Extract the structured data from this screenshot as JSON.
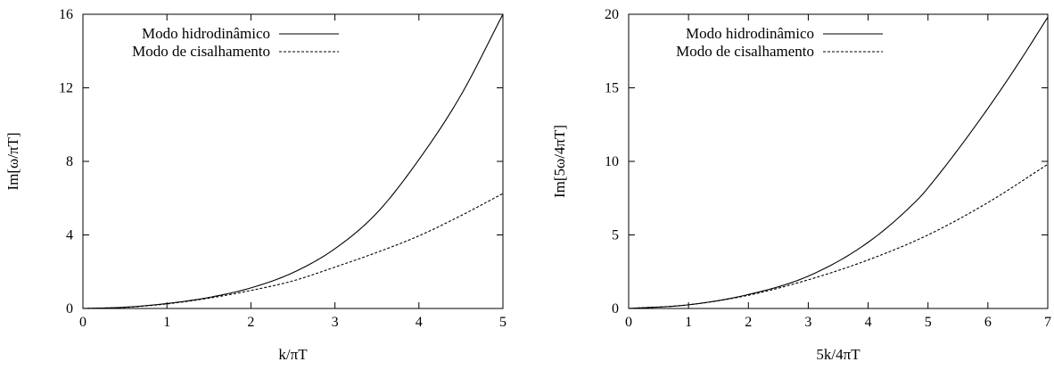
{
  "chart_data": [
    {
      "type": "line",
      "title": "",
      "xlabel": "k/πT",
      "ylabel": "Im[ω/πT]",
      "xlim": [
        0,
        5
      ],
      "ylim": [
        0,
        16
      ],
      "x_ticks": [
        "0",
        "1",
        "2",
        "3",
        "4",
        "5"
      ],
      "y_ticks": [
        "0",
        "4",
        "8",
        "12",
        "16"
      ],
      "grid": false,
      "legend_position": "top-left",
      "series": [
        {
          "name": "Modo hidrodinâmico",
          "style": "solid",
          "x": [
            0,
            0.5,
            1,
            1.5,
            2,
            2.5,
            3,
            3.5,
            4,
            4.5,
            5
          ],
          "y": [
            0,
            0.07,
            0.27,
            0.6,
            1.12,
            1.95,
            3.25,
            5.2,
            8.1,
            11.6,
            16.0
          ]
        },
        {
          "name": "Modo de cisalhamento",
          "style": "dashed",
          "x": [
            0,
            0.5,
            1,
            1.5,
            2,
            2.5,
            3,
            3.5,
            4,
            4.5,
            5
          ],
          "y": [
            0,
            0.06,
            0.25,
            0.56,
            0.98,
            1.5,
            2.25,
            3.05,
            3.95,
            5.05,
            6.25
          ]
        }
      ]
    },
    {
      "type": "line",
      "title": "",
      "xlabel": "5k/4πT",
      "ylabel": "Im[5ω/4πT]",
      "xlim": [
        0,
        7
      ],
      "ylim": [
        0,
        20
      ],
      "x_ticks": [
        "0",
        "1",
        "2",
        "3",
        "4",
        "5",
        "6",
        "7"
      ],
      "y_ticks": [
        "0",
        "5",
        "10",
        "15",
        "20"
      ],
      "grid": false,
      "legend_position": "top-left",
      "series": [
        {
          "name": "Modo hidrodinâmico",
          "style": "solid",
          "x": [
            0,
            1,
            2,
            3,
            4,
            4.85,
            5,
            5.5,
            6,
            6.5,
            7
          ],
          "y": [
            0,
            0.25,
            0.95,
            2.2,
            4.5,
            7.5,
            8.2,
            10.8,
            13.6,
            16.6,
            19.8
          ]
        },
        {
          "name": "Modo de cisalhamento",
          "style": "dashed",
          "x": [
            0,
            1,
            2,
            3,
            4,
            5,
            6,
            7
          ],
          "y": [
            0,
            0.25,
            0.9,
            1.95,
            3.3,
            5.0,
            7.2,
            9.8
          ]
        }
      ]
    }
  ]
}
